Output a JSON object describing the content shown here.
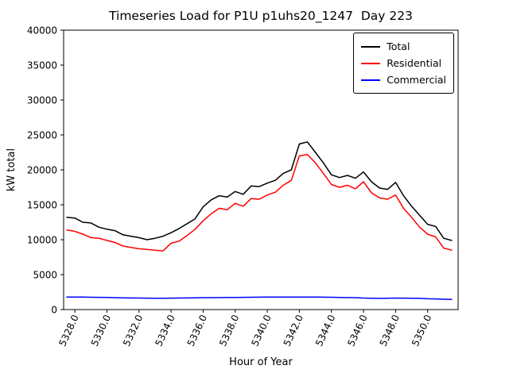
{
  "chart_data": {
    "type": "line",
    "title": "Timeseries Load for P1U p1uhs20_1247  Day 223",
    "xlabel": "Hour of Year",
    "ylabel": "kW total",
    "xlim": [
      5327.3,
      5351.9
    ],
    "ylim": [
      0,
      40000
    ],
    "grid": false,
    "legend_position": "upper right",
    "x_ticks": [
      5328,
      5330,
      5332,
      5334,
      5336,
      5338,
      5340,
      5342,
      5344,
      5346,
      5348,
      5350
    ],
    "x_tick_labels": [
      "5328.0",
      "5330.0",
      "5332.0",
      "5334.0",
      "5336.0",
      "5338.0",
      "5340.0",
      "5342.0",
      "5344.0",
      "5346.0",
      "5348.0",
      "5350.0"
    ],
    "y_ticks": [
      0,
      5000,
      10000,
      15000,
      20000,
      25000,
      30000,
      35000,
      40000
    ],
    "y_tick_labels": [
      "0",
      "5000",
      "10000",
      "15000",
      "20000",
      "25000",
      "30000",
      "35000",
      "40000"
    ],
    "x": [
      5327.5,
      5328.0,
      5328.5,
      5329.0,
      5329.5,
      5330.0,
      5330.5,
      5331.0,
      5331.5,
      5332.0,
      5332.5,
      5333.0,
      5333.5,
      5334.0,
      5334.5,
      5335.0,
      5335.5,
      5336.0,
      5336.5,
      5337.0,
      5337.5,
      5338.0,
      5338.5,
      5339.0,
      5339.5,
      5340.0,
      5340.5,
      5341.0,
      5341.5,
      5342.0,
      5342.5,
      5343.0,
      5343.5,
      5344.0,
      5344.5,
      5345.0,
      5345.5,
      5346.0,
      5346.5,
      5347.0,
      5347.5,
      5348.0,
      5348.5,
      5349.0,
      5349.5,
      5350.0,
      5350.5,
      5351.0,
      5351.5
    ],
    "series": [
      {
        "name": "Total",
        "color": "#000000",
        "values": [
          13200,
          13100,
          12500,
          12400,
          11800,
          11500,
          11300,
          10700,
          10500,
          10300,
          10000,
          10200,
          10500,
          11000,
          11600,
          12300,
          13000,
          14700,
          15700,
          16300,
          16100,
          16900,
          16500,
          17700,
          17600,
          18100,
          18500,
          19500,
          20000,
          23700,
          24000,
          22500,
          21000,
          19300,
          18900,
          19200,
          18800,
          19700,
          18300,
          17400,
          17200,
          18200,
          16300,
          14800,
          13500,
          12200,
          11900,
          10200,
          9900
        ]
      },
      {
        "name": "Residential",
        "color": "#ff0000",
        "values": [
          11400,
          11200,
          10800,
          10300,
          10200,
          9900,
          9600,
          9100,
          8900,
          8700,
          8600,
          8500,
          8400,
          9500,
          9800,
          10600,
          11500,
          12700,
          13700,
          14500,
          14300,
          15200,
          14800,
          15900,
          15800,
          16400,
          16800,
          17800,
          18500,
          22000,
          22200,
          21000,
          19500,
          17900,
          17500,
          17800,
          17300,
          18300,
          16700,
          16000,
          15800,
          16400,
          14500,
          13200,
          11800,
          10800,
          10400,
          8800,
          8500
        ]
      },
      {
        "name": "Commercial",
        "color": "#0000ff",
        "values": [
          1800,
          1800,
          1780,
          1760,
          1750,
          1740,
          1700,
          1680,
          1660,
          1650,
          1640,
          1630,
          1630,
          1640,
          1650,
          1660,
          1680,
          1700,
          1710,
          1720,
          1730,
          1740,
          1750,
          1760,
          1770,
          1780,
          1780,
          1790,
          1790,
          1800,
          1790,
          1780,
          1770,
          1760,
          1740,
          1720,
          1700,
          1650,
          1620,
          1600,
          1620,
          1650,
          1640,
          1620,
          1600,
          1550,
          1520,
          1480,
          1450
        ]
      }
    ]
  }
}
